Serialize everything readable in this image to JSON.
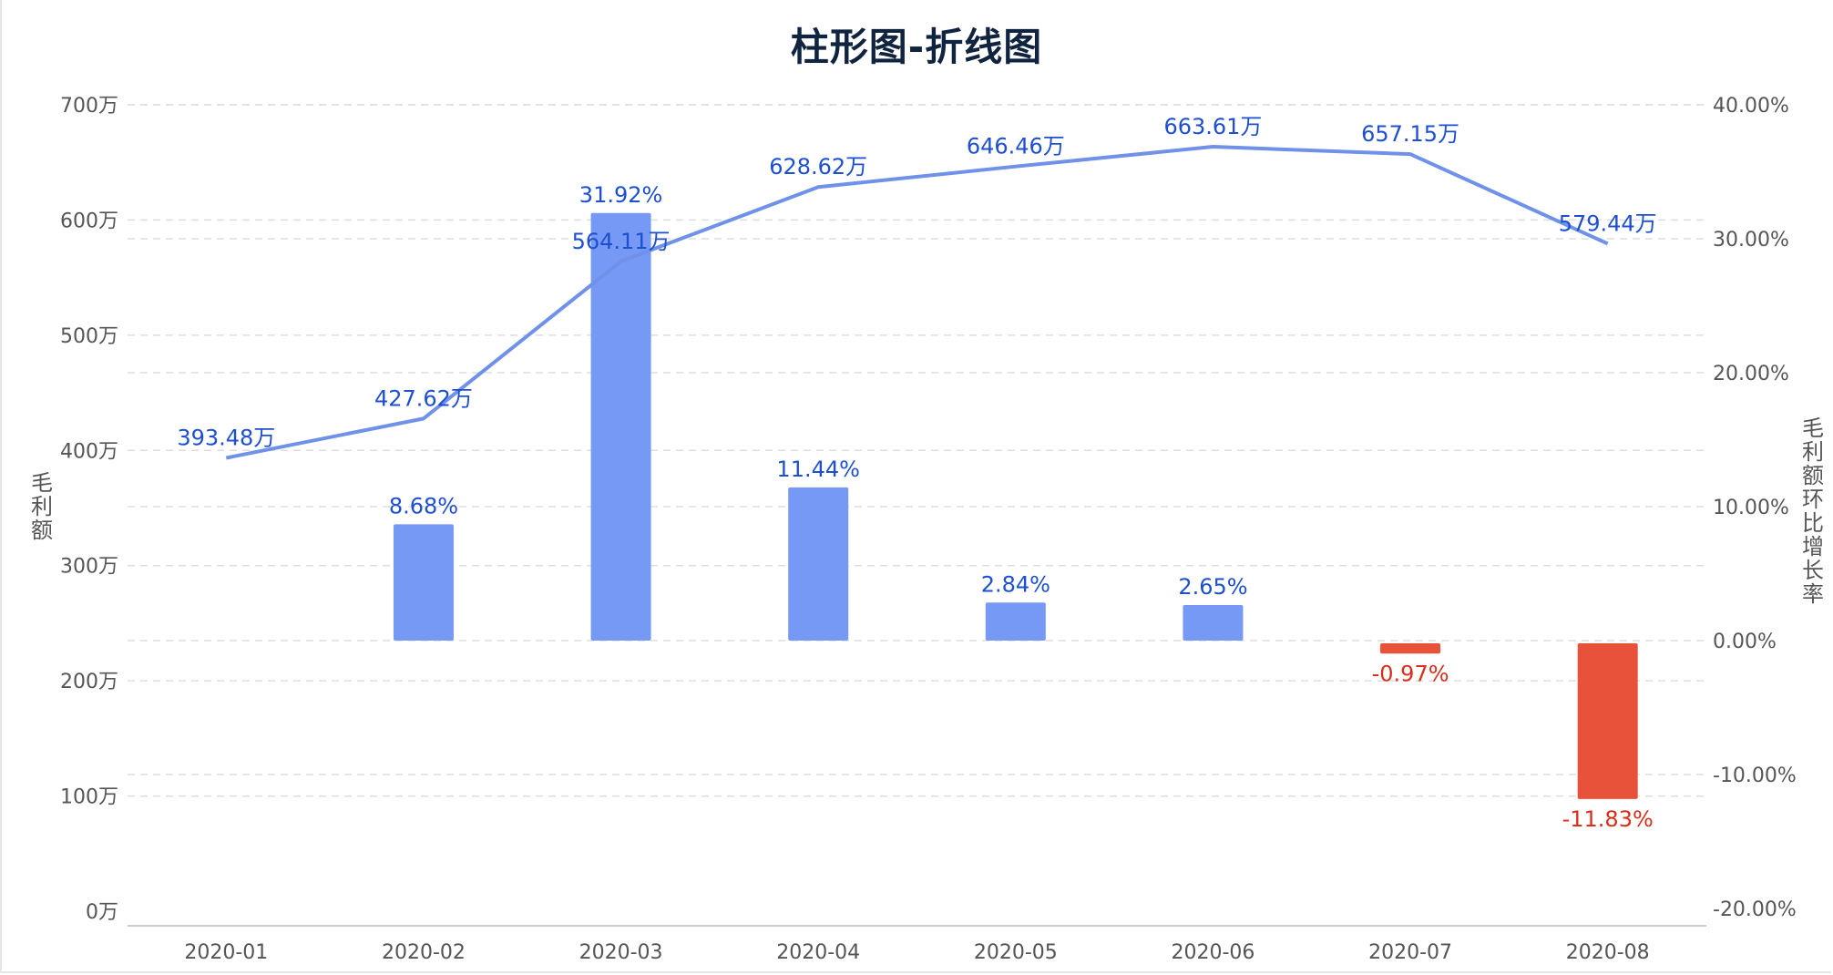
{
  "chart_data": {
    "type": "bar+line",
    "title": "柱形图-折线图",
    "categories": [
      "2020-01",
      "2020-02",
      "2020-03",
      "2020-04",
      "2020-05",
      "2020-06",
      "2020-07",
      "2020-08"
    ],
    "left_axis": {
      "label": "毛利额",
      "range": [
        0,
        700
      ],
      "ticks": [
        "0万",
        "100万",
        "200万",
        "300万",
        "400万",
        "500万",
        "600万",
        "700万"
      ]
    },
    "right_axis": {
      "label": "毛利额环比增长率",
      "range": [
        -20,
        40
      ],
      "ticks": [
        "-20.00%",
        "-10.00%",
        "0.00%",
        "10.00%",
        "20.00%",
        "30.00%",
        "40.00%"
      ]
    },
    "line_series": {
      "axis": "left",
      "unit": "万",
      "values": [
        393.48,
        427.62,
        564.11,
        628.62,
        646.46,
        663.61,
        657.15,
        579.44
      ],
      "labels": [
        "393.48万",
        "427.62万",
        "564.11万",
        "628.62万",
        "646.46万",
        "663.61万",
        "657.15万",
        "579.44万"
      ]
    },
    "bar_series": {
      "axis": "right",
      "unit": "%",
      "values": [
        null,
        8.68,
        31.92,
        11.44,
        2.84,
        2.65,
        -0.97,
        -11.83
      ],
      "labels": [
        "",
        "8.68%",
        "31.92%",
        "11.44%",
        "2.84%",
        "2.65%",
        "-0.97%",
        "-11.83%"
      ]
    },
    "colors": {
      "line": "#6f92e8",
      "bar_positive": "#7599f5",
      "bar_negative": "#e8523a",
      "label_positive": "#1d4fd0",
      "label_negative": "#d72f1a",
      "axis_text": "#555555",
      "grid": "#dddddd",
      "title": "#10233f"
    },
    "grid": true,
    "legend": "none"
  }
}
